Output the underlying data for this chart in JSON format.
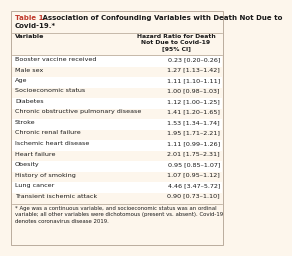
{
  "title_red": "Table 1.",
  "title_black": " Association of Confounding Variables with Death Not Due to Covid-19.*",
  "col_header_left": "Variable",
  "col_header_right": "Hazard Ratio for Death\nNot Due to Covid-19\n[95% CI]",
  "rows": [
    [
      "Booster vaccine received",
      "0.23 [0.20–0.26]"
    ],
    [
      "Male sex",
      "1.27 [1.13–1.42]"
    ],
    [
      "Age",
      "1.11 [1.10–1.11]"
    ],
    [
      "Socioeconomic status",
      "1.00 [0.98–1.03]"
    ],
    [
      "Diabetes",
      "1.12 [1.00–1.25]"
    ],
    [
      "Chronic obstructive pulmonary disease",
      "1.41 [1.20–1.65]"
    ],
    [
      "Stroke",
      "1.53 [1.34–1.74]"
    ],
    [
      "Chronic renal failure",
      "1.95 [1.71–2.21]"
    ],
    [
      "Ischemic heart disease",
      "1.11 [0.99–1.26]"
    ],
    [
      "Heart failure",
      "2.01 [1.75–2.31]"
    ],
    [
      "Obesity",
      "0.95 [0.85–1.07]"
    ],
    [
      "History of smoking",
      "1.07 [0.95–1.12]"
    ],
    [
      "Lung cancer",
      "4.46 [3.47–5.72]"
    ],
    [
      "Transient ischemic attack",
      "0.90 [0.73–1.10]"
    ]
  ],
  "footnote": "* Age was a continuous variable, and socioeconomic status was an ordinal\nvariable; all other variables were dichotomous (present vs. absent). Covid-19\ndenotes coronavirus disease 2019.",
  "bg_color": "#fdf6ec",
  "white_row": "#ffffff",
  "title_color_red": "#c0392b",
  "title_color_black": "#1a1a1a",
  "border_color": "#b0a090",
  "text_color": "#1a1a1a",
  "font_size": 4.6,
  "header_font_size": 4.6,
  "title_font_size": 5.0,
  "footnote_font_size": 3.9
}
